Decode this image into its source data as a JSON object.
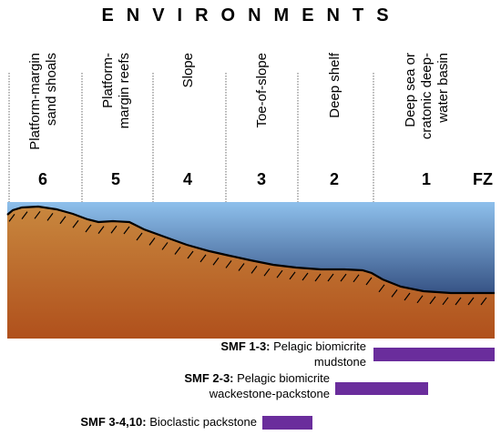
{
  "title": "ENVIRONMENTS",
  "environments": [
    {
      "zone": "6",
      "lines": [
        "Platform-margin",
        "sand shoals"
      ]
    },
    {
      "zone": "5",
      "lines": [
        "Platform-",
        "margin reefs"
      ]
    },
    {
      "zone": "4",
      "lines": [
        "Slope"
      ]
    },
    {
      "zone": "3",
      "lines": [
        "Toe-of-slope"
      ]
    },
    {
      "zone": "2",
      "lines": [
        "Deep shelf"
      ]
    },
    {
      "zone": "1",
      "lines": [
        "Deep sea or",
        "cratonic deep-",
        "water basin"
      ]
    }
  ],
  "fz_label": "FZ",
  "facies": [
    {
      "code": "SMF 1-3:",
      "desc": [
        "Pelagic biomicrite",
        "mudstone"
      ],
      "zone_from": 1,
      "zone_to": "FZ"
    },
    {
      "code": "SMF 2-3:",
      "desc": [
        "Pelagic biomicrite",
        "wackestone-packstone"
      ],
      "zone_from": 1,
      "zone_to": 2
    },
    {
      "code": "SMF 3-4,10:",
      "desc": [
        "Bioclastic packstone"
      ],
      "zone_from": 3,
      "zone_to": 3
    }
  ],
  "colors": {
    "water_top": "#8ec0ec",
    "water_bottom": "#0b1d52",
    "sediment_top": "#c8873e",
    "sediment_bottom": "#b0501c",
    "bar": "#6a2d9c"
  }
}
